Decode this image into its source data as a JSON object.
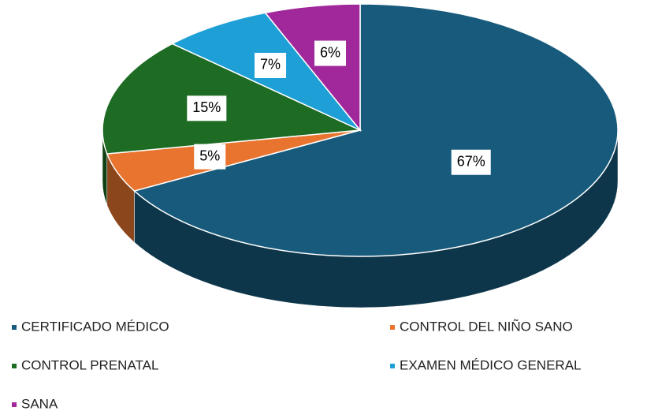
{
  "chart_data": {
    "type": "pie",
    "categories": [
      "CERTIFICADO MÉDICO",
      "CONTROL DEL NIÑO SANO",
      "CONTROL PRENATAL",
      "EXAMEN MÉDICO GENERAL",
      "SANA"
    ],
    "values": [
      67,
      5,
      15,
      7,
      6
    ],
    "value_labels": [
      "67%",
      "5%",
      "15%",
      "7%",
      "6%"
    ],
    "colors": [
      "#175a7c",
      "#e8742f",
      "#1e6b23",
      "#1ea0d6",
      "#a0289a"
    ],
    "legend": "bottom"
  }
}
